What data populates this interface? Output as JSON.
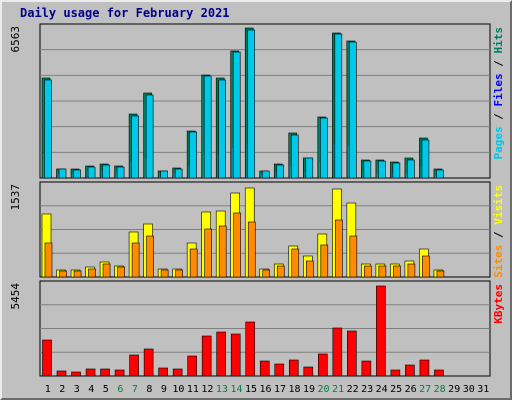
{
  "title": "Daily usage for February 2021",
  "colors": {
    "background": "#c0c0c0",
    "plot_background": "#c0c0c0",
    "gridline": "#808080",
    "title": "#00008b",
    "pages": "#00c8e8",
    "pages_dark": "#00688a",
    "files": "#00a0c0",
    "hits": "#008060",
    "visits": "#ffff00",
    "sites": "#ff8c00",
    "kbytes": "#ff0000",
    "weekend_day": "#008040",
    "weekday": "#000000"
  },
  "chart_data": [
    {
      "type": "bar",
      "panel": "top",
      "max_label": "6563",
      "ylim": [
        0,
        6563
      ],
      "legend_right": [
        {
          "text": "Pages",
          "color": "#00c8e8"
        },
        {
          "text": " / ",
          "color": "#000000"
        },
        {
          "text": "Files",
          "color": "#0000ff"
        },
        {
          "text": " / ",
          "color": "#000000"
        },
        {
          "text": "Hits",
          "color": "#008060"
        }
      ],
      "categories": [
        1,
        2,
        3,
        4,
        5,
        6,
        7,
        8,
        9,
        10,
        11,
        12,
        13,
        14,
        15,
        16,
        17,
        18,
        19,
        20,
        21,
        22,
        23,
        24,
        25,
        26,
        27,
        28,
        29,
        30,
        31
      ],
      "series": [
        {
          "name": "Hits",
          "values": [
            4300,
            410,
            370,
            500,
            620,
            530,
            2750,
            3650,
            320,
            420,
            2050,
            4450,
            4300,
            5500,
            6460,
            320,
            590,
            1940,
            870,
            2620,
            6270,
            5930,
            790,
            780,
            700,
            850,
            1720,
            370,
            0,
            0,
            0
          ]
        },
        {
          "name": "Files",
          "values": [
            1050,
            190,
            170,
            240,
            290,
            250,
            680,
            830,
            140,
            180,
            510,
            1050,
            1050,
            1280,
            1460,
            140,
            270,
            470,
            270,
            680,
            1460,
            1400,
            200,
            200,
            190,
            230,
            460,
            150,
            0,
            0,
            0
          ]
        },
        {
          "name": "Pages",
          "values": [
            4250,
            380,
            330,
            470,
            570,
            480,
            2690,
            3600,
            290,
            380,
            1990,
            4400,
            4250,
            5420,
            6380,
            290,
            540,
            1870,
            860,
            2600,
            6200,
            5880,
            750,
            750,
            660,
            790,
            1650,
            340,
            0,
            0,
            0
          ]
        }
      ]
    },
    {
      "type": "bar",
      "panel": "middle",
      "max_label": "1537",
      "ylim": [
        0,
        1537
      ],
      "legend_right": [
        {
          "text": "Sites",
          "color": "#ff8c00"
        },
        {
          "text": " / ",
          "color": "#000000"
        },
        {
          "text": "Visits",
          "color": "#ffff00"
        }
      ],
      "categories": [
        1,
        2,
        3,
        4,
        5,
        6,
        7,
        8,
        9,
        10,
        11,
        12,
        13,
        14,
        15,
        16,
        17,
        18,
        19,
        20,
        21,
        22,
        23,
        24,
        25,
        26,
        27,
        28,
        29,
        30,
        31
      ],
      "series": [
        {
          "name": "Visits",
          "values": [
            1040,
            120,
            110,
            170,
            240,
            180,
            740,
            870,
            130,
            140,
            570,
            1070,
            1090,
            1390,
            1470,
            140,
            210,
            520,
            340,
            710,
            1460,
            1230,
            220,
            210,
            220,
            270,
            470,
            110,
            0,
            0,
            0
          ]
        },
        {
          "name": "Sites",
          "values": [
            570,
            100,
            95,
            140,
            220,
            160,
            560,
            680,
            110,
            120,
            460,
            800,
            840,
            1060,
            910,
            110,
            190,
            460,
            270,
            530,
            950,
            670,
            190,
            190,
            190,
            220,
            340,
            95,
            0,
            0,
            0
          ]
        }
      ]
    },
    {
      "type": "bar",
      "panel": "bottom",
      "max_label": "5454",
      "ylim": [
        0,
        5454
      ],
      "legend_right": [
        {
          "text": "KBytes",
          "color": "#ff0000"
        }
      ],
      "categories": [
        1,
        2,
        3,
        4,
        5,
        6,
        7,
        8,
        9,
        10,
        11,
        12,
        13,
        14,
        15,
        16,
        17,
        18,
        19,
        20,
        21,
        22,
        23,
        24,
        25,
        26,
        27,
        28,
        29,
        30,
        31
      ],
      "series": [
        {
          "name": "KBytes",
          "values": [
            2130,
            310,
            260,
            400,
            400,
            340,
            1240,
            1580,
            450,
            420,
            1190,
            2350,
            2580,
            2490,
            3140,
            880,
            730,
            910,
            550,
            1290,
            2790,
            2640,
            860,
            5260,
            350,
            670,
            910,
            330,
            0,
            0,
            0
          ]
        }
      ]
    }
  ],
  "x_axis": {
    "labels": [
      "1",
      "2",
      "3",
      "4",
      "5",
      "6",
      "7",
      "8",
      "9",
      "10",
      "11",
      "12",
      "13",
      "14",
      "15",
      "16",
      "17",
      "18",
      "19",
      "20",
      "21",
      "22",
      "23",
      "24",
      "25",
      "26",
      "27",
      "28",
      "29",
      "30",
      "31"
    ],
    "weekend_days": [
      6,
      7,
      13,
      14,
      20,
      21,
      27,
      28
    ]
  }
}
